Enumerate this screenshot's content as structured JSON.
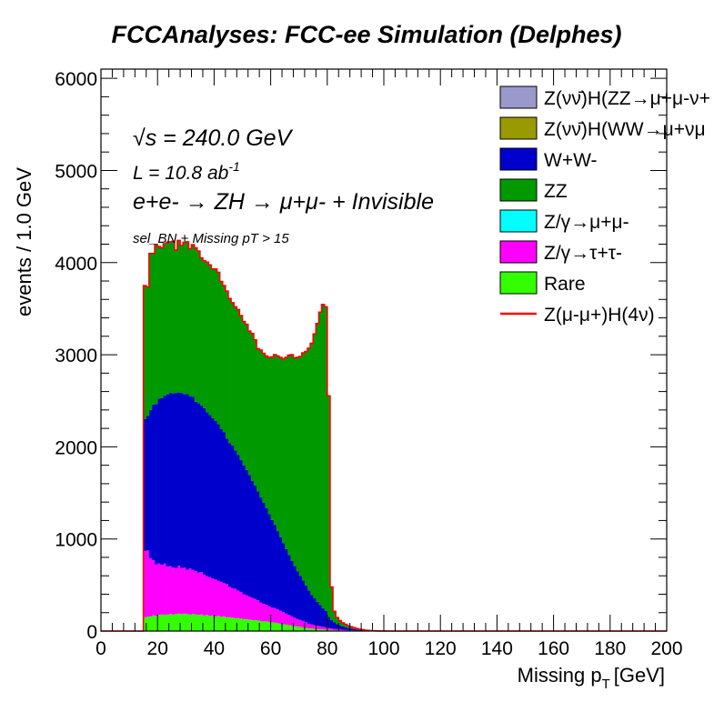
{
  "chart_data": {
    "type": "area",
    "title": "FCCAnalyses: FCC-ee Simulation (Delphes)",
    "xlabel": "Missing p",
    "xlabel_sub": "T",
    "xlabel_unit": "[GeV]",
    "ylabel": "events / 1.0 GeV",
    "xlim": [
      0,
      200
    ],
    "ylim": [
      0,
      6100
    ],
    "x_ticks": [
      "0",
      "20",
      "40",
      "60",
      "80",
      "100",
      "120",
      "140",
      "160",
      "180",
      "200"
    ],
    "y_ticks": [
      "0",
      "1000",
      "2000",
      "3000",
      "4000",
      "5000",
      "6000"
    ],
    "annotations": {
      "energy": "√s = 240.0 GeV",
      "lumi": "L = 10.8 ab",
      "lumi_sup": "-1",
      "process": "e+e- → ZH → μ+μ- + Invisible",
      "selection": "sel_BN + Missing pT > 15"
    },
    "legend_position": "top-right",
    "legend": [
      {
        "label": "Z(νν̄)H(ZZ→μ+μ-ν+",
        "color": "#9999cc",
        "kind": "box"
      },
      {
        "label": "Z(νν̄)H(WW→μ+νμ",
        "color": "#999900",
        "kind": "box"
      },
      {
        "label": "W+W-",
        "color": "#0000cc",
        "kind": "box"
      },
      {
        "label": "ZZ",
        "color": "#009900",
        "kind": "box"
      },
      {
        "label": "Z/γ→μ+μ-",
        "color": "#00ffff",
        "kind": "box"
      },
      {
        "label": "Z/γ→τ+τ-",
        "color": "#ff00ff",
        "kind": "box"
      },
      {
        "label": "Rare",
        "color": "#33ff00",
        "kind": "box"
      },
      {
        "label": "Z(μ-μ+)H(4ν)",
        "color": "#ff0000",
        "kind": "line"
      }
    ],
    "x": [
      15,
      16,
      17,
      18,
      19,
      20,
      21,
      22,
      23,
      24,
      25,
      26,
      27,
      28,
      29,
      30,
      31,
      32,
      33,
      34,
      35,
      36,
      37,
      38,
      39,
      40,
      41,
      42,
      43,
      44,
      45,
      46,
      47,
      48,
      49,
      50,
      51,
      52,
      53,
      54,
      55,
      56,
      57,
      58,
      59,
      60,
      61,
      62,
      63,
      64,
      65,
      66,
      67,
      68,
      69,
      70,
      71,
      72,
      73,
      74,
      75,
      76,
      77,
      78,
      79,
      80,
      81,
      82,
      83,
      84,
      85,
      86,
      87,
      88,
      89,
      90,
      91,
      92,
      93,
      94,
      95,
      96,
      97,
      98,
      99,
      100,
      101,
      102,
      103,
      104
    ],
    "series": [
      {
        "name": "Rare",
        "color": "#33ff00",
        "values": [
          150,
          155,
          160,
          170,
          165,
          175,
          180,
          175,
          180,
          185,
          180,
          185,
          190,
          185,
          190,
          185,
          180,
          185,
          180,
          175,
          180,
          170,
          175,
          165,
          170,
          160,
          165,
          155,
          160,
          150,
          150,
          145,
          140,
          140,
          135,
          130,
          130,
          125,
          120,
          120,
          115,
          110,
          105,
          105,
          100,
          95,
          90,
          85,
          80,
          75,
          70,
          65,
          60,
          55,
          50,
          45,
          40,
          35,
          30,
          28,
          25,
          22,
          20,
          18,
          16,
          14,
          12,
          10,
          9,
          8,
          7,
          6,
          5,
          4,
          3,
          3,
          2,
          2,
          1,
          1,
          1,
          0,
          0,
          0,
          0,
          0,
          0,
          0,
          0,
          0
        ]
      },
      {
        "name": "Z/γ→τ+τ-",
        "color": "#ff00ff",
        "values": [
          720,
          720,
          630,
          600,
          560,
          560,
          540,
          560,
          520,
          520,
          510,
          500,
          520,
          500,
          500,
          480,
          500,
          480,
          470,
          460,
          460,
          440,
          420,
          420,
          400,
          400,
          380,
          380,
          360,
          360,
          330,
          320,
          320,
          300,
          290,
          270,
          260,
          250,
          240,
          230,
          220,
          200,
          190,
          180,
          170,
          160,
          160,
          150,
          140,
          130,
          120,
          110,
          100,
          90,
          80,
          75,
          70,
          60,
          50,
          45,
          40,
          36,
          32,
          28,
          24,
          20,
          16,
          14,
          12,
          10,
          8,
          7,
          6,
          5,
          4,
          3,
          2,
          1,
          1,
          0,
          0,
          0,
          0,
          0,
          0,
          0,
          0,
          0,
          0,
          0
        ]
      },
      {
        "name": "W+W-",
        "color": "#0000cc",
        "values": [
          1430,
          1460,
          1610,
          1690,
          1740,
          1790,
          1810,
          1820,
          1870,
          1880,
          1890,
          1900,
          1880,
          1900,
          1880,
          1910,
          1870,
          1880,
          1840,
          1840,
          1810,
          1810,
          1780,
          1760,
          1740,
          1720,
          1700,
          1660,
          1640,
          1580,
          1560,
          1550,
          1500,
          1470,
          1430,
          1400,
          1360,
          1320,
          1270,
          1230,
          1180,
          1140,
          1100,
          1050,
          1000,
          950,
          900,
          850,
          800,
          750,
          700,
          650,
          600,
          560,
          520,
          480,
          440,
          400,
          360,
          320,
          290,
          260,
          230,
          200,
          180,
          120,
          90,
          70,
          55,
          45,
          35,
          28,
          22,
          18,
          14,
          10,
          8,
          6,
          4,
          3,
          2,
          1,
          1,
          0,
          0,
          0,
          0,
          0,
          0,
          0
        ]
      },
      {
        "name": "ZZ",
        "color": "#009900",
        "values": [
          1450,
          1400,
          1700,
          1640,
          1730,
          1650,
          1630,
          1650,
          1650,
          1640,
          1650,
          1550,
          1650,
          1600,
          1650,
          1650,
          1600,
          1650,
          1670,
          1650,
          1600,
          1600,
          1630,
          1630,
          1620,
          1650,
          1650,
          1600,
          1590,
          1600,
          1570,
          1550,
          1560,
          1580,
          1570,
          1560,
          1580,
          1560,
          1600,
          1580,
          1550,
          1600,
          1620,
          1650,
          1700,
          1770,
          1850,
          1900,
          1950,
          2000,
          2080,
          2170,
          2240,
          2260,
          2320,
          2380,
          2470,
          2540,
          2630,
          2730,
          2870,
          3020,
          3180,
          3300,
          3300,
          2400,
          360,
          120,
          72,
          50,
          40,
          32,
          25,
          20,
          16,
          12,
          9,
          7,
          4,
          3,
          2,
          2,
          1,
          1,
          1,
          1,
          0,
          0,
          0,
          0
        ]
      },
      {
        "name": "Z/γ→μ+μ-",
        "color": "#00ffff",
        "values": [
          0,
          0,
          0,
          0,
          0,
          0,
          0,
          0,
          0,
          0,
          0,
          0,
          0,
          0,
          0,
          0,
          0,
          0,
          0,
          0,
          0,
          0,
          0,
          0,
          0,
          0,
          0,
          0,
          0,
          0,
          0,
          0,
          0,
          0,
          0,
          0,
          0,
          0,
          0,
          0,
          0,
          0,
          0,
          0,
          0,
          0,
          0,
          0,
          0,
          0,
          0,
          0,
          0,
          0,
          0,
          0,
          0,
          0,
          0,
          0,
          0,
          0,
          0,
          0,
          0,
          0,
          0,
          0,
          0,
          0,
          0,
          0,
          0,
          0,
          0,
          0,
          0,
          0,
          0,
          0,
          0,
          0,
          0,
          0,
          0,
          0,
          0,
          0,
          0,
          0
        ]
      },
      {
        "name": "Z(νν̄)H(WW→μ+νμ",
        "color": "#999900",
        "values": [
          0,
          0,
          0,
          0,
          0,
          0,
          0,
          0,
          0,
          0,
          0,
          0,
          0,
          0,
          0,
          0,
          0,
          0,
          0,
          0,
          0,
          0,
          0,
          0,
          0,
          0,
          0,
          0,
          0,
          0,
          0,
          0,
          0,
          0,
          0,
          0,
          0,
          0,
          0,
          0,
          0,
          0,
          0,
          0,
          0,
          0,
          0,
          0,
          0,
          0,
          0,
          0,
          0,
          0,
          0,
          0,
          0,
          0,
          0,
          0,
          0,
          0,
          0,
          0,
          0,
          0,
          0,
          0,
          0,
          0,
          0,
          0,
          0,
          0,
          0,
          0,
          0,
          0,
          0,
          0,
          0,
          0,
          0,
          0,
          0,
          0,
          0,
          0,
          0,
          0
        ]
      },
      {
        "name": "Z(νν̄)H(ZZ→μ+μ-ν+",
        "color": "#9999cc",
        "values": [
          0,
          0,
          0,
          0,
          0,
          0,
          0,
          0,
          0,
          0,
          0,
          0,
          0,
          0,
          0,
          0,
          0,
          0,
          0,
          0,
          0,
          0,
          0,
          0,
          0,
          0,
          0,
          0,
          0,
          0,
          0,
          0,
          0,
          0,
          0,
          0,
          0,
          0,
          0,
          0,
          0,
          0,
          0,
          0,
          0,
          0,
          0,
          0,
          0,
          0,
          0,
          0,
          0,
          0,
          0,
          0,
          0,
          0,
          0,
          0,
          0,
          0,
          0,
          0,
          0,
          0,
          0,
          0,
          0,
          0,
          0,
          0,
          0,
          0,
          0,
          0,
          0,
          0,
          0,
          0,
          0,
          0,
          0,
          0,
          0,
          0,
          0,
          0,
          0,
          0
        ]
      }
    ],
    "signal": {
      "name": "Z(μ-μ+)H(4ν)",
      "color": "#ff0000",
      "values": "stacked total"
    }
  }
}
